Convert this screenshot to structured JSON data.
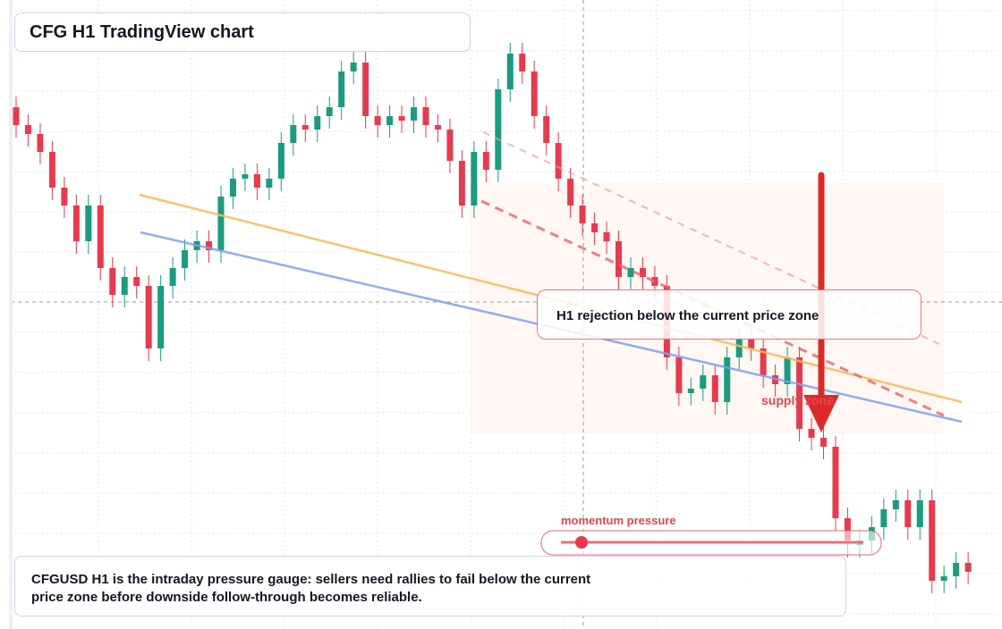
{
  "header": {
    "title": "CFG H1 TradingView chart"
  },
  "chart_data": {
    "type": "candlestick",
    "open": [
      58.4,
      56.4,
      55.4,
      53.4,
      49.4,
      47.4,
      43.4,
      47.4,
      40.4,
      37.4,
      39.4,
      38.4,
      31.4,
      38.4,
      40.4,
      42.4,
      43.4,
      42.4,
      48.4,
      50.4,
      50.9,
      49.4,
      50.4,
      54.4,
      56.4,
      55.9,
      57.4,
      58.4,
      62.4,
      63.4,
      57.4,
      56.4,
      57.4,
      56.9,
      58.4,
      56.4,
      55.9,
      52.4,
      47.4,
      53.4,
      51.4,
      60.4,
      64.4,
      62.4,
      57.4,
      54.4,
      50.4,
      47.4,
      45.4,
      44.4,
      43.4,
      39.4,
      40.4,
      39.4,
      38.4,
      30.4,
      26.4,
      26.9,
      28.4,
      25.4,
      30.4,
      32.4,
      31.4,
      28.4,
      27.4,
      30.4,
      22.4,
      21.4,
      20.4,
      12.4,
      9.4,
      9.9,
      11.4,
      13.4,
      14.4,
      11.4,
      14.4,
      5.4,
      5.9,
      7.4
    ],
    "high": [
      59.6,
      57.6,
      56.6,
      54.6,
      50.6,
      48.6,
      48.6,
      48.6,
      41.6,
      40.6,
      40.6,
      39.6,
      39.6,
      41.6,
      43.6,
      44.6,
      44.6,
      49.6,
      51.6,
      52.1,
      52.1,
      51.6,
      55.6,
      57.6,
      57.6,
      58.6,
      59.6,
      63.6,
      64.6,
      64.6,
      58.6,
      58.6,
      58.6,
      59.6,
      59.6,
      57.6,
      57.1,
      53.6,
      54.6,
      54.6,
      61.6,
      65.6,
      65.6,
      63.6,
      58.6,
      55.6,
      51.6,
      48.6,
      46.6,
      45.6,
      44.6,
      41.6,
      41.6,
      40.6,
      39.6,
      31.6,
      28.1,
      29.6,
      29.6,
      31.6,
      33.6,
      33.6,
      32.6,
      29.6,
      31.6,
      31.6,
      23.6,
      22.6,
      21.6,
      13.6,
      11.1,
      12.6,
      14.6,
      15.6,
      15.6,
      15.6,
      15.6,
      7.1,
      8.6,
      8.6
    ],
    "low": [
      55.0,
      54.0,
      52.0,
      48.0,
      46.0,
      42.0,
      42.0,
      39.0,
      36.0,
      36.0,
      37.0,
      30.0,
      30.0,
      37.0,
      39.0,
      41.0,
      41.0,
      41.0,
      47.0,
      49.0,
      48.0,
      48.0,
      49.0,
      53.0,
      54.5,
      54.5,
      56.0,
      57.0,
      61.0,
      56.0,
      55.0,
      55.0,
      55.5,
      55.5,
      55.0,
      54.5,
      51.0,
      46.0,
      46.0,
      50.0,
      50.0,
      59.0,
      61.0,
      56.0,
      53.0,
      49.0,
      46.0,
      44.0,
      43.0,
      42.0,
      38.0,
      38.0,
      38.0,
      37.0,
      29.0,
      25.0,
      25.0,
      25.5,
      24.0,
      24.0,
      29.0,
      30.0,
      27.0,
      26.0,
      26.0,
      21.0,
      20.0,
      19.0,
      11.0,
      8.0,
      8.0,
      8.5,
      10.0,
      12.0,
      10.0,
      10.0,
      4.0,
      4.0,
      4.5,
      5.0
    ],
    "close": [
      56.4,
      55.4,
      53.4,
      49.4,
      47.4,
      43.4,
      47.4,
      40.4,
      37.4,
      39.4,
      38.4,
      31.4,
      38.4,
      40.4,
      42.4,
      43.4,
      42.4,
      48.4,
      50.4,
      50.9,
      49.4,
      50.4,
      54.4,
      56.4,
      55.9,
      57.4,
      58.4,
      62.4,
      63.4,
      57.4,
      56.4,
      57.4,
      56.9,
      58.4,
      56.4,
      55.9,
      52.4,
      47.4,
      53.4,
      51.4,
      60.4,
      64.4,
      62.4,
      57.4,
      54.4,
      50.4,
      47.4,
      45.4,
      44.4,
      43.4,
      39.4,
      40.4,
      39.4,
      38.4,
      30.4,
      26.4,
      26.9,
      28.4,
      25.4,
      30.4,
      32.4,
      31.4,
      28.4,
      27.4,
      30.4,
      22.4,
      21.4,
      20.4,
      12.4,
      9.9,
      9.9,
      11.4,
      13.4,
      14.4,
      11.4,
      14.4,
      5.4,
      5.9,
      7.4,
      6.4
    ],
    "ylim": [
      0,
      70.4
    ],
    "up_color": "#1b9b80",
    "down_color": "#e63a4e"
  },
  "annotations": {
    "callout": "H1 rejection below the current price zone",
    "zone_label": "supply zone",
    "gauge_label": "momentum pressure"
  },
  "note": "CFGUSD H1 is the intraday pressure gauge: sellers need rallies to fail below the current price zone before downside follow-through becomes reliable."
}
